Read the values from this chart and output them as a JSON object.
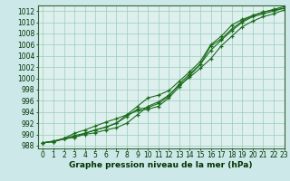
{
  "title": "Graphe pression niveau de la mer (hPa)",
  "bg_color": "#cce8e8",
  "plot_bg_color": "#ddf0ee",
  "grid_color": "#99ccbb",
  "line_color": "#1a6b1a",
  "xlim": [
    -0.5,
    23
  ],
  "ylim": [
    987.5,
    1013
  ],
  "xticks": [
    0,
    1,
    2,
    3,
    4,
    5,
    6,
    7,
    8,
    9,
    10,
    11,
    12,
    13,
    14,
    15,
    16,
    17,
    18,
    19,
    20,
    21,
    22,
    23
  ],
  "yticks": [
    988,
    990,
    992,
    994,
    996,
    998,
    1000,
    1002,
    1004,
    1006,
    1008,
    1010,
    1012
  ],
  "line1_x": [
    0,
    1,
    2,
    3,
    4,
    5,
    6,
    7,
    8,
    9,
    10,
    11,
    12,
    13,
    14,
    15,
    16,
    17,
    18,
    19,
    20,
    21,
    22,
    23
  ],
  "line1_y": [
    988.5,
    988.7,
    989.2,
    989.5,
    990.0,
    990.3,
    990.8,
    991.2,
    992.0,
    993.5,
    995.0,
    995.8,
    997.0,
    998.8,
    1000.2,
    1001.8,
    1003.5,
    1005.8,
    1007.5,
    1009.2,
    1010.2,
    1011.0,
    1011.5,
    1012.2
  ],
  "line2_x": [
    0,
    1,
    2,
    3,
    4,
    5,
    6,
    7,
    8,
    9,
    10,
    11,
    12,
    13,
    14,
    15,
    16,
    17,
    18,
    19,
    20,
    21,
    22,
    23
  ],
  "line2_y": [
    988.5,
    988.7,
    989.2,
    989.5,
    990.2,
    990.8,
    991.3,
    992.0,
    993.2,
    994.5,
    994.8,
    995.5,
    996.8,
    999.0,
    1000.8,
    1002.5,
    1005.0,
    1006.8,
    1008.5,
    1010.0,
    1011.0,
    1011.5,
    1012.0,
    1012.5
  ],
  "line3_x": [
    0,
    1,
    2,
    3,
    4,
    5,
    6,
    7,
    8,
    9,
    10,
    11,
    12,
    13,
    14,
    15,
    16,
    17,
    18,
    19,
    20,
    21,
    22,
    23
  ],
  "line3_y": [
    988.5,
    988.8,
    989.3,
    990.2,
    990.8,
    991.5,
    992.2,
    992.8,
    993.5,
    994.2,
    994.5,
    995.0,
    996.5,
    998.5,
    1000.5,
    1002.5,
    1005.8,
    1007.0,
    1008.8,
    1010.2,
    1011.2,
    1011.8,
    1012.2,
    1012.5
  ],
  "line4_x": [
    0,
    1,
    2,
    3,
    4,
    5,
    6,
    7,
    8,
    9,
    10,
    11,
    12,
    13,
    14,
    15,
    16,
    17,
    18,
    19,
    20,
    21,
    22,
    23
  ],
  "line4_y": [
    988.5,
    988.8,
    989.2,
    989.8,
    990.2,
    990.8,
    991.3,
    992.0,
    993.5,
    995.0,
    996.5,
    997.0,
    997.8,
    999.5,
    1001.2,
    1003.0,
    1006.0,
    1007.5,
    1009.5,
    1010.5,
    1011.2,
    1011.8,
    1012.3,
    1012.8
  ],
  "xlabel_fontsize": 6.5,
  "tick_fontsize": 5.5
}
